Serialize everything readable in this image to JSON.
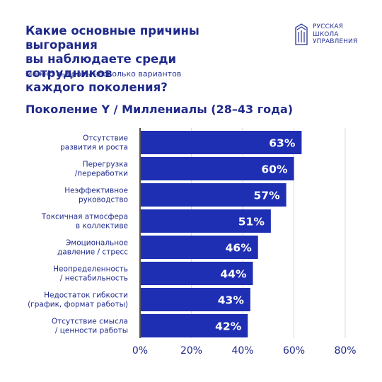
{
  "header": {
    "title": "Какие основные причины выгорания\nвы наблюдаете среди сотрудников\nкаждого поколения?",
    "subtitle": "Можно выбрать несколько вариантов"
  },
  "logo": {
    "icon": "building-emblem-icon",
    "line1": "РУССКАЯ",
    "line2": "ШКОЛА",
    "line3": "УПРАВЛЕНИЯ"
  },
  "chart_data": {
    "type": "bar",
    "orientation": "horizontal",
    "title": "Поколение Y / Миллениалы (28–43 года)",
    "categories": [
      "Отсутствие\nразвития и роста",
      "Перегрузка\n/переработки",
      "Неэффективное\nруководство",
      "Токсичная атмосфера\nв коллективе",
      "Эмоциональное\nдавление / стресс",
      "Неопределенность\n/ нестабильность",
      "Недостаток гибкости\n(график, формат работы)",
      "Отсутствие смысла\n/ ценности работы"
    ],
    "values": [
      63,
      60,
      57,
      51,
      46,
      44,
      43,
      42
    ],
    "value_labels": [
      "63%",
      "60%",
      "57%",
      "51%",
      "46%",
      "44%",
      "43%",
      "42%"
    ],
    "xlim": [
      0,
      80
    ],
    "xticks": [
      0,
      20,
      40,
      60,
      80
    ],
    "xtick_labels": [
      "0%",
      "20%",
      "40%",
      "60%",
      "80%"
    ],
    "grid": true,
    "bar_color": "#1e2fb4"
  }
}
